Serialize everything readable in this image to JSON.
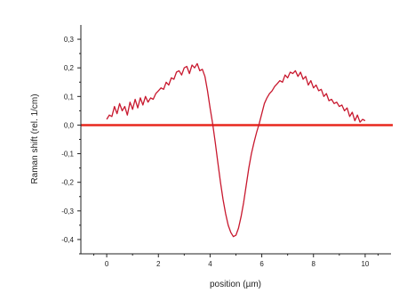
{
  "chart_data": {
    "type": "line",
    "title": "",
    "xlabel": "position (µm)",
    "ylabel": "Raman shift (rel. 1/cm)",
    "xlim": [
      -1,
      11
    ],
    "ylim": [
      -0.45,
      0.35
    ],
    "x_ticks": [
      0,
      2,
      4,
      6,
      8,
      10
    ],
    "x_tick_labels": [
      "0",
      "2",
      "4",
      "6",
      "8",
      "10"
    ],
    "y_ticks": [
      0.3,
      0.2,
      0.1,
      0.0,
      -0.1,
      -0.2,
      -0.3,
      -0.4
    ],
    "y_tick_labels": [
      "0,3",
      "0,2",
      "0,1",
      "0,0",
      "-0,1",
      "-0,2",
      "-0,3",
      "-0,4"
    ],
    "grid": false,
    "legend": "none",
    "reference_line": {
      "y": 0.0,
      "color": "#e8281e"
    },
    "series": [
      {
        "color": "#c8182e",
        "x": [
          0.0,
          0.1,
          0.2,
          0.3,
          0.4,
          0.5,
          0.6,
          0.7,
          0.8,
          0.9,
          1.0,
          1.1,
          1.2,
          1.3,
          1.4,
          1.5,
          1.6,
          1.7,
          1.8,
          1.9,
          2.0,
          2.1,
          2.2,
          2.3,
          2.4,
          2.5,
          2.6,
          2.7,
          2.8,
          2.9,
          3.0,
          3.1,
          3.2,
          3.3,
          3.4,
          3.5,
          3.6,
          3.7,
          3.8,
          3.9,
          4.0,
          4.1,
          4.2,
          4.3,
          4.4,
          4.5,
          4.6,
          4.7,
          4.8,
          4.9,
          5.0,
          5.1,
          5.2,
          5.3,
          5.4,
          5.5,
          5.6,
          5.7,
          5.8,
          5.9,
          6.0,
          6.1,
          6.2,
          6.3,
          6.4,
          6.5,
          6.6,
          6.7,
          6.8,
          6.9,
          7.0,
          7.1,
          7.2,
          7.3,
          7.4,
          7.5,
          7.6,
          7.7,
          7.8,
          7.9,
          8.0,
          8.1,
          8.2,
          8.3,
          8.4,
          8.5,
          8.6,
          8.7,
          8.8,
          8.9,
          9.0,
          9.1,
          9.2,
          9.3,
          9.4,
          9.5,
          9.6,
          9.7,
          9.8,
          9.9,
          10.0
        ],
        "y": [
          0.02,
          0.035,
          0.03,
          0.065,
          0.04,
          0.075,
          0.05,
          0.065,
          0.035,
          0.08,
          0.055,
          0.09,
          0.06,
          0.095,
          0.07,
          0.1,
          0.08,
          0.095,
          0.09,
          0.11,
          0.12,
          0.13,
          0.125,
          0.15,
          0.14,
          0.165,
          0.16,
          0.185,
          0.19,
          0.175,
          0.2,
          0.205,
          0.18,
          0.21,
          0.2,
          0.215,
          0.19,
          0.195,
          0.17,
          0.12,
          0.06,
          0.005,
          -0.06,
          -0.13,
          -0.2,
          -0.26,
          -0.31,
          -0.35,
          -0.375,
          -0.39,
          -0.385,
          -0.36,
          -0.32,
          -0.27,
          -0.21,
          -0.15,
          -0.1,
          -0.06,
          -0.025,
          0.005,
          0.04,
          0.075,
          0.095,
          0.11,
          0.12,
          0.135,
          0.145,
          0.155,
          0.15,
          0.175,
          0.165,
          0.185,
          0.18,
          0.19,
          0.17,
          0.185,
          0.16,
          0.17,
          0.14,
          0.155,
          0.13,
          0.14,
          0.12,
          0.125,
          0.1,
          0.11,
          0.085,
          0.09,
          0.075,
          0.08,
          0.065,
          0.07,
          0.05,
          0.06,
          0.03,
          0.045,
          0.015,
          0.035,
          0.01,
          0.02,
          0.015
        ]
      }
    ]
  }
}
